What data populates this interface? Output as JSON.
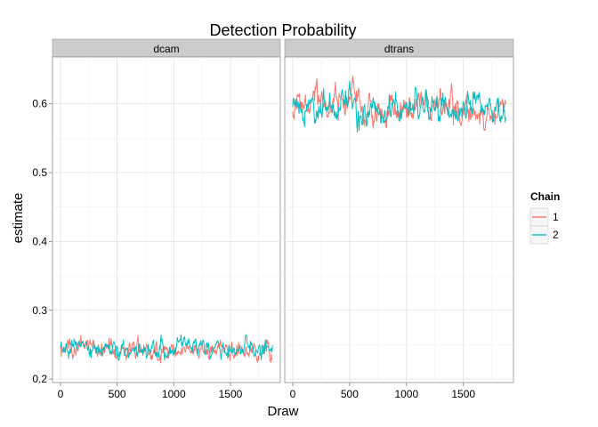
{
  "chart_data": {
    "type": "line",
    "title": "Detection Probability",
    "xlabel": "Draw",
    "ylabel": "estimate",
    "xlim": [
      -70,
      1940
    ],
    "ylim": [
      0.195,
      0.668
    ],
    "x_ticks": [
      0,
      500,
      1000,
      1500
    ],
    "y_ticks": [
      0.2,
      0.3,
      0.4,
      0.5,
      0.6
    ],
    "y_tick_labels": [
      "0.2",
      "0.3",
      "0.4",
      "0.5",
      "0.6"
    ],
    "grid": true,
    "legend": {
      "title": "Chain",
      "position": "right",
      "entries": [
        {
          "label": "1",
          "color": "#F8766D"
        },
        {
          "label": "2",
          "color": "#00BFC4"
        }
      ]
    },
    "panels": [
      {
        "label": "dcam",
        "series": [
          {
            "name": "1",
            "color": "#F8766D",
            "n_draws": 1875,
            "mean": 0.243,
            "sd": 0.008
          },
          {
            "name": "2",
            "color": "#00BFC4",
            "n_draws": 1875,
            "mean": 0.244,
            "sd": 0.007
          }
        ]
      },
      {
        "label": "dtrans",
        "series": [
          {
            "name": "1",
            "color": "#F8766D",
            "n_draws": 1875,
            "mean": 0.592,
            "sd": 0.012
          },
          {
            "name": "2",
            "color": "#00BFC4",
            "n_draws": 1875,
            "mean": 0.594,
            "sd": 0.012
          }
        ]
      }
    ]
  }
}
